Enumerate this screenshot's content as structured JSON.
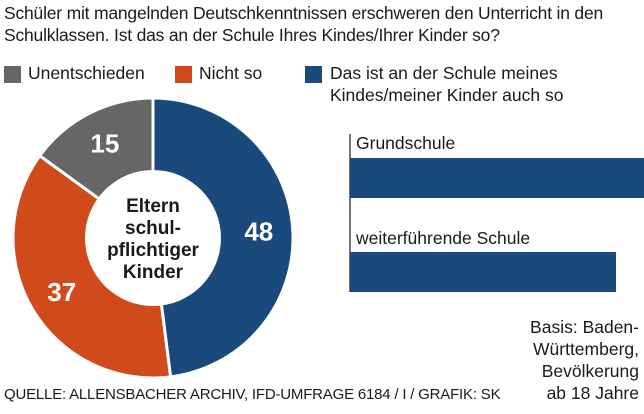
{
  "title": "Schüler mit mangelnden Deutschkenntnissen erschweren den Unterricht in den Schulklassen. Ist das an der Schule Ihres Kindes/Ihrer Kinder so?",
  "colors": {
    "undecided": "#666666",
    "not_so": "#d04a1c",
    "yes": "#1a4a7c"
  },
  "legend": [
    {
      "label": "Unentschieden",
      "color": "#666666"
    },
    {
      "label": "Nicht so",
      "color": "#d04a1c"
    },
    {
      "label": "Das ist an der Schule meines Kindes/meiner Kinder auch so",
      "color": "#1a4a7c"
    }
  ],
  "chart_data": [
    {
      "type": "pie",
      "center_label_lines": [
        "Eltern",
        "schul-",
        "pflichtiger",
        "Kinder"
      ],
      "labels": [
        "Das ist an der Schule meines Kindes/meiner Kinder auch so",
        "Nicht so",
        "Unentschieden"
      ],
      "values": [
        48,
        37,
        15
      ],
      "value_labels": [
        "48",
        "37",
        "15"
      ],
      "colors": [
        "#1a4a7c",
        "#d04a1c",
        "#666666"
      ]
    },
    {
      "type": "bar",
      "orientation": "horizontal",
      "categories": [
        "Grundschule",
        "weiterführende Schule"
      ],
      "color": "#1a4a7c",
      "grid": false,
      "axis_labels_visible": false,
      "note": "Bar lengths only; no values printed (Grundschule bar extends beyond the image edge)."
    }
  ],
  "basis": "Basis: Baden-Württemberg, Bevölkerung ab 18 Jahre",
  "basis_lines": [
    "Basis: Baden-",
    "Württemberg,",
    "Bevölkerung",
    "ab 18 Jahre"
  ],
  "source": "QUELLE: ALLENSBACHER ARCHIV, IFD-UMFRAGE 6184 / I / GRAFIK: SK"
}
